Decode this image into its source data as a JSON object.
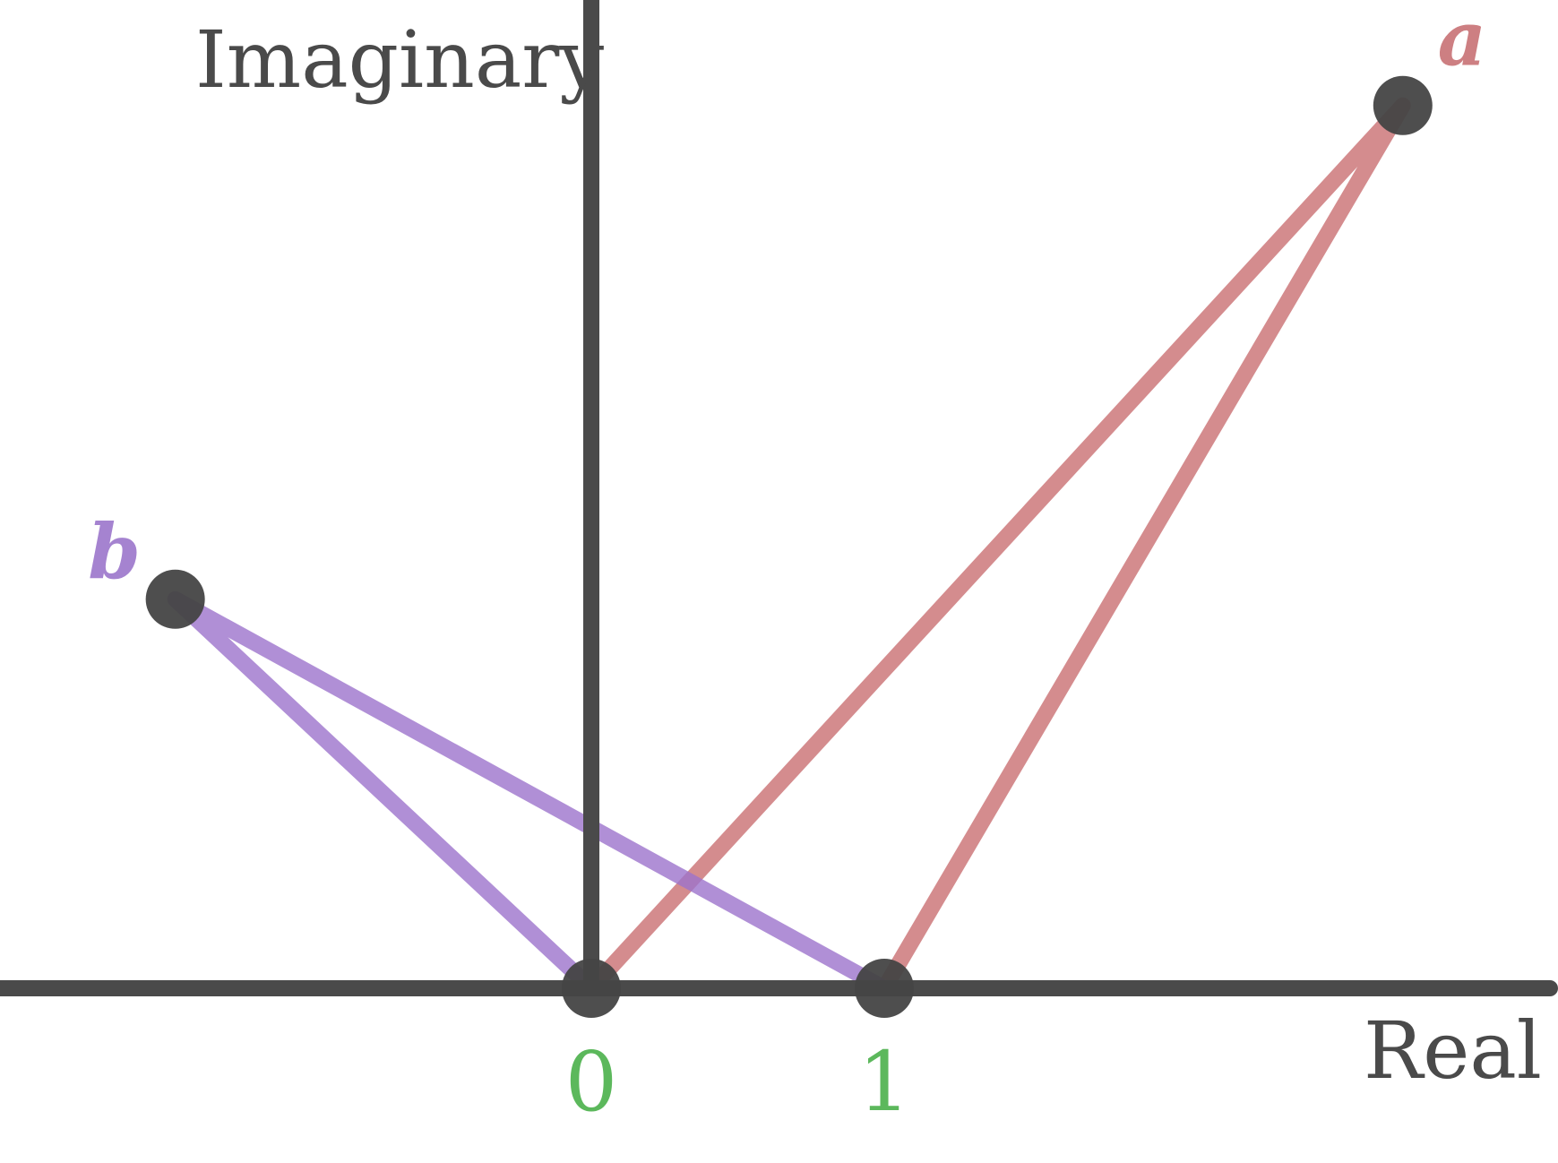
{
  "axes": {
    "real_label": "Real",
    "imaginary_label": "Imaginary",
    "color": "#4a4a4a"
  },
  "points": [
    {
      "id": "origin",
      "label": "0",
      "re": 0,
      "im": 0,
      "label_color": "#5cb85c"
    },
    {
      "id": "one",
      "label": "1",
      "re": 1,
      "im": 0,
      "label_color": "#5cb85c"
    },
    {
      "id": "a",
      "label": "a",
      "re": 2.77,
      "im": 2.95,
      "label_color": "#cd7f82"
    },
    {
      "id": "b",
      "label": "b",
      "re": -1.42,
      "im": 1.3,
      "label_color": "#a583d0"
    }
  ],
  "triangles": [
    {
      "name": "a",
      "color": "#c96f72",
      "vertices": [
        "origin",
        "one",
        "a"
      ]
    },
    {
      "name": "b",
      "color": "#9c73cc",
      "vertices": [
        "origin",
        "one",
        "b"
      ]
    }
  ],
  "point_color": "#444444"
}
